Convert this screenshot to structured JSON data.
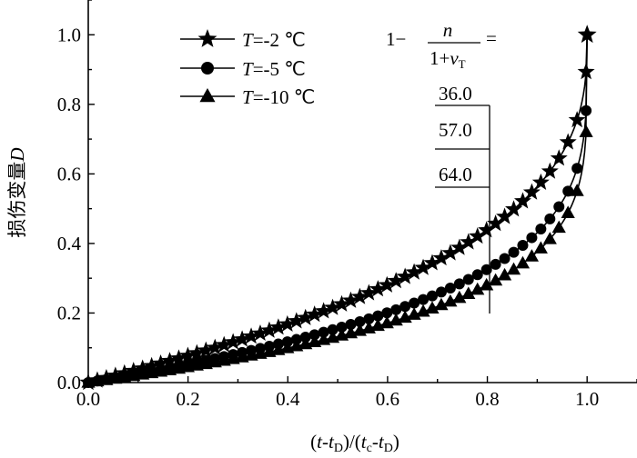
{
  "chart_data": {
    "type": "line",
    "xlabel": "(t-tD)/(tc-tD)",
    "ylabel": "损伤变量D",
    "xlim": [
      0.0,
      1.1
    ],
    "ylim": [
      0.0,
      1.1
    ],
    "x_ticks": [
      "0.0",
      "0.2",
      "0.4",
      "0.6",
      "0.8",
      "1.0"
    ],
    "y_ticks": [
      "0.0",
      "0.2",
      "0.4",
      "0.6",
      "0.8",
      "1.0"
    ],
    "grid": false,
    "legend_position": "top-left",
    "series": [
      {
        "name": "T=-2 ℃",
        "marker": "star",
        "n_over_1_plus_nu": 36.0
      },
      {
        "name": "T=-5 ℃",
        "marker": "circle",
        "n_over_1_plus_nu": 57.0
      },
      {
        "name": "T=-10 ℃",
        "marker": "triangle",
        "n_over_1_plus_nu": 64.0
      }
    ],
    "annotation": {
      "formula": "1 − n/(1+νT) =",
      "values": [
        "36.0",
        "57.0",
        "64.0"
      ],
      "x": 0.8
    }
  }
}
